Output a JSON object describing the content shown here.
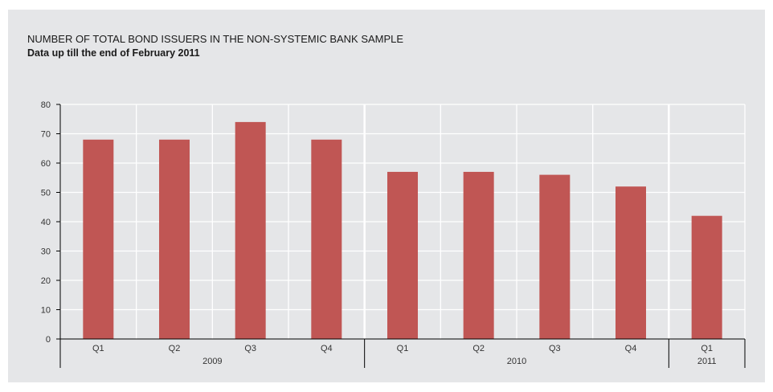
{
  "chart_data": {
    "type": "bar",
    "title": "NUMBER OF TOTAL BOND ISSUERS IN THE NON-SYSTEMIC BANK SAMPLE",
    "subtitle": "Data up till the end of February 2011",
    "categories": [
      "Q1",
      "Q2",
      "Q3",
      "Q4",
      "Q1",
      "Q2",
      "Q3",
      "Q4",
      "Q1"
    ],
    "groups": [
      {
        "label": "2009",
        "start": 0,
        "count": 4
      },
      {
        "label": "2010",
        "start": 4,
        "count": 4
      },
      {
        "label": "2011",
        "start": 8,
        "count": 1
      }
    ],
    "values": [
      68,
      68,
      74,
      68,
      57,
      57,
      56,
      52,
      42
    ],
    "ylim": [
      0,
      80
    ],
    "yticks": [
      0,
      10,
      20,
      30,
      40,
      50,
      60,
      70,
      80
    ],
    "grid": true,
    "colors": {
      "bar": "#c05654",
      "background": "#e5e6e8",
      "grid": "#ffffff",
      "axis": "#000000"
    }
  }
}
